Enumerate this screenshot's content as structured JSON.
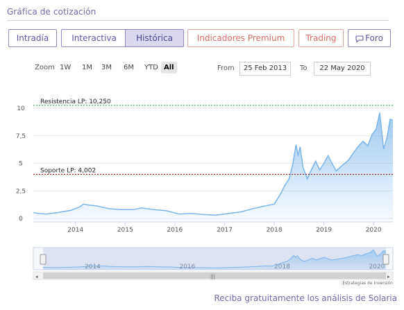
{
  "section_title": "Gráfica de cotización",
  "tabs": [
    {
      "label": "Intradía",
      "state": "normal"
    },
    {
      "label": "Interactiva",
      "state": "normal"
    },
    {
      "label": "Histórica",
      "state": "active"
    },
    {
      "label": "Indicadores Premium",
      "state": "premium"
    },
    {
      "label": "Trading",
      "state": "premium"
    },
    {
      "label": "Foro",
      "state": "normal",
      "icon": "chat-bubble-icon"
    }
  ],
  "range_selector": {
    "zoom_label": "Zoom",
    "buttons": [
      "1W",
      "1M",
      "3M",
      "6M",
      "YTD",
      "All"
    ],
    "selected": "All",
    "from_label": "From",
    "from_value": "25 Feb 2013",
    "to_label": "To",
    "to_value": "22 May 2020"
  },
  "chart_data": {
    "type": "area",
    "title": "",
    "xlabel": "",
    "ylabel": "",
    "x_ticks": [
      "2014",
      "2015",
      "2016",
      "2017",
      "2018",
      "2019",
      "2020"
    ],
    "y_ticks": [
      "0",
      "2,5",
      "5",
      "7,5",
      "10"
    ],
    "ylim": [
      0,
      10
    ],
    "xlim": [
      "2013-02-25",
      "2020-05-22"
    ],
    "grid": "horizontal",
    "series": [
      {
        "color": "#7cb5ec",
        "points": [
          [
            "2013-02-25",
            0.55
          ],
          [
            "2013-04-01",
            0.45
          ],
          [
            "2013-06-01",
            0.4
          ],
          [
            "2013-09-01",
            0.55
          ],
          [
            "2013-12-01",
            0.75
          ],
          [
            "2014-02-01",
            1.05
          ],
          [
            "2014-03-01",
            1.3
          ],
          [
            "2014-04-15",
            1.2
          ],
          [
            "2014-06-01",
            1.15
          ],
          [
            "2014-09-01",
            0.9
          ],
          [
            "2014-12-01",
            0.8
          ],
          [
            "2015-03-01",
            0.8
          ],
          [
            "2015-05-01",
            0.95
          ],
          [
            "2015-08-01",
            0.8
          ],
          [
            "2015-11-01",
            0.7
          ],
          [
            "2016-02-01",
            0.4
          ],
          [
            "2016-05-01",
            0.45
          ],
          [
            "2016-08-01",
            0.35
          ],
          [
            "2016-11-01",
            0.3
          ],
          [
            "2017-02-01",
            0.45
          ],
          [
            "2017-05-01",
            0.6
          ],
          [
            "2017-08-01",
            0.9
          ],
          [
            "2017-11-01",
            1.15
          ],
          [
            "2018-01-01",
            1.3
          ],
          [
            "2018-02-15",
            2.2
          ],
          [
            "2018-03-20",
            3.0
          ],
          [
            "2018-04-20",
            3.6
          ],
          [
            "2018-05-15",
            4.8
          ],
          [
            "2018-06-10",
            6.7
          ],
          [
            "2018-06-25",
            5.7
          ],
          [
            "2018-07-10",
            6.5
          ],
          [
            "2018-08-01",
            4.6
          ],
          [
            "2018-09-01",
            3.6
          ],
          [
            "2018-10-01",
            4.4
          ],
          [
            "2018-11-01",
            5.2
          ],
          [
            "2018-12-01",
            4.4
          ],
          [
            "2019-01-01",
            5.0
          ],
          [
            "2019-02-01",
            5.7
          ],
          [
            "2019-03-01",
            5.0
          ],
          [
            "2019-04-01",
            4.3
          ],
          [
            "2019-05-15",
            4.8
          ],
          [
            "2019-07-01",
            5.3
          ],
          [
            "2019-09-01",
            6.4
          ],
          [
            "2019-10-15",
            7.0
          ],
          [
            "2019-11-20",
            6.6
          ],
          [
            "2019-12-20",
            7.6
          ],
          [
            "2020-01-20",
            8.1
          ],
          [
            "2020-02-15",
            9.6
          ],
          [
            "2020-03-15",
            6.3
          ],
          [
            "2020-04-10",
            7.4
          ],
          [
            "2020-05-01",
            9.0
          ],
          [
            "2020-05-22",
            8.9
          ]
        ]
      }
    ],
    "annotations": [
      {
        "label": "Resistencia LP: 10,250",
        "value": 10.25,
        "color": "#2e8b2e"
      },
      {
        "label": "Soporte LP: 4,002",
        "value": 4.002,
        "color": "#8b0000"
      }
    ]
  },
  "navigator": {
    "ticks": [
      "2014",
      "2016",
      "2018",
      "2020"
    ]
  },
  "colors": {
    "accent": "#6f6aa8",
    "area": "#7cb5ec",
    "premium": "#d66d66"
  },
  "credit": "Estrategias de Inversión",
  "cta": "Reciba gratuitamente los análisis de Solaria"
}
